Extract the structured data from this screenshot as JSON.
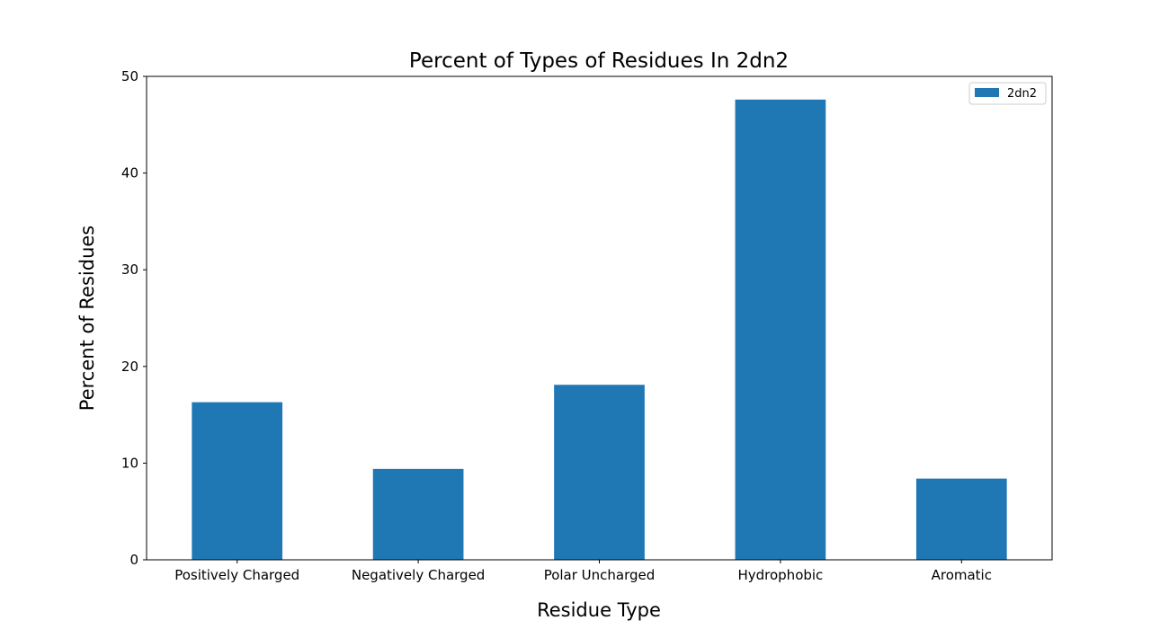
{
  "chart_data": {
    "type": "bar",
    "title": "Percent of Types of Residues In 2dn2",
    "xlabel": "Residue Type",
    "ylabel": "Percent of Residues",
    "categories": [
      "Positively Charged",
      "Negatively Charged",
      "Polar Uncharged",
      "Hydrophobic",
      "Aromatic"
    ],
    "series": [
      {
        "name": "2dn2",
        "values": [
          16.3,
          9.4,
          18.1,
          47.6,
          8.4
        ],
        "color": "#1f77b4"
      }
    ],
    "ylim": [
      0,
      50
    ],
    "yticks": [
      "0",
      "10",
      "20",
      "30",
      "40",
      "50"
    ],
    "grid": false,
    "legend_position": "top-right"
  }
}
